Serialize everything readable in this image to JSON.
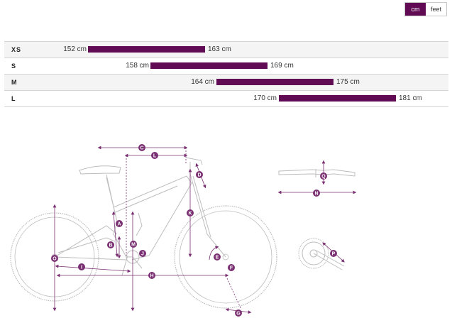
{
  "unit_toggle": {
    "options": [
      "cm",
      "feet"
    ],
    "selected": "cm"
  },
  "sizes": [
    {
      "label": "XS",
      "min": "152 cm",
      "max": "163 cm"
    },
    {
      "label": "S",
      "min": "158 cm",
      "max": "169 cm"
    },
    {
      "label": "M",
      "min": "164 cm",
      "max": "175 cm"
    },
    {
      "label": "L",
      "min": "170 cm",
      "max": "181 cm"
    }
  ],
  "geometry_markers": [
    "A",
    "B",
    "C",
    "D",
    "E",
    "F",
    "G",
    "H",
    "I",
    "J",
    "K",
    "L",
    "M",
    "N",
    "O",
    "P",
    "Q"
  ],
  "colors": {
    "accent": "#600b54",
    "line": "#bdbdbd",
    "dim": "#7a3072"
  }
}
